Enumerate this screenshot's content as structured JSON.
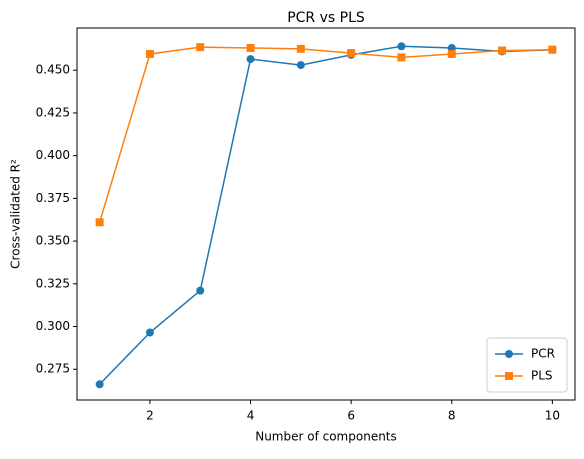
{
  "chart_data": {
    "type": "line",
    "title": "PCR vs PLS",
    "x_label": "Number of components",
    "y_label": "Cross-validated R²",
    "x": [
      1,
      2,
      3,
      4,
      5,
      6,
      7,
      8,
      9,
      10
    ],
    "series": [
      {
        "name": "PCR",
        "color": "#1f77b4",
        "marker": "circle",
        "values": [
          0.2662,
          0.2965,
          0.321,
          0.4565,
          0.453,
          0.459,
          0.464,
          0.463,
          0.461,
          0.462
        ]
      },
      {
        "name": "PLS",
        "color": "#ff7f0e",
        "marker": "square",
        "values": [
          0.361,
          0.4595,
          0.4635,
          0.463,
          0.4625,
          0.46,
          0.4575,
          0.4595,
          0.4615,
          0.462
        ]
      }
    ],
    "xlim": [
      0.55,
      10.45
    ],
    "ylim": [
      0.257,
      0.4747
    ],
    "xticks": [
      2,
      4,
      6,
      8,
      10
    ],
    "yticks": [
      0.275,
      {
        "value": 0.3,
        "label": "0.300"
      },
      0.325,
      {
        "value": 0.35,
        "label": "0.350"
      },
      0.375,
      {
        "value": 0.4,
        "label": "0.400"
      },
      0.425,
      {
        "value": 0.45,
        "label": "0.450"
      }
    ],
    "legend": "lower right"
  }
}
